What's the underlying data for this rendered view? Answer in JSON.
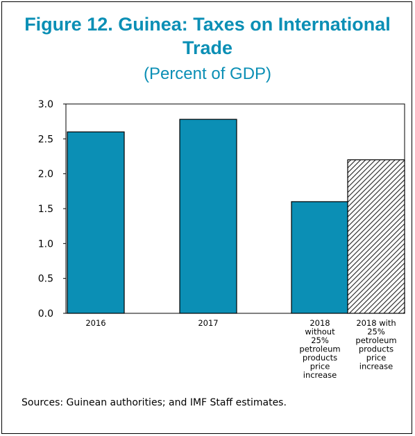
{
  "chart_data": {
    "type": "bar",
    "title": "Figure 12. Guinea: Taxes on International Trade",
    "subtitle": "(Percent of GDP)",
    "categories": [
      [
        "2016"
      ],
      [
        "2017"
      ],
      [
        "2018",
        "without",
        "25%",
        "petroleum",
        "products",
        "price",
        "increase"
      ],
      [
        "2018 with",
        "25%",
        "petroleum",
        "products",
        "price",
        "increase"
      ]
    ],
    "values": [
      2.6,
      2.78,
      1.6,
      2.2
    ],
    "bar_styles": [
      "solid",
      "solid",
      "solid",
      "hatched"
    ],
    "bar_color": "#0b8fb5",
    "ylim": [
      0,
      3.0
    ],
    "yticks": [
      "0.0",
      "0.5",
      "1.0",
      "1.5",
      "2.0",
      "2.5",
      "3.0"
    ],
    "grid": false,
    "xlabel": "",
    "ylabel": ""
  },
  "source": "Sources: Guinean authorities; and IMF Staff estimates."
}
